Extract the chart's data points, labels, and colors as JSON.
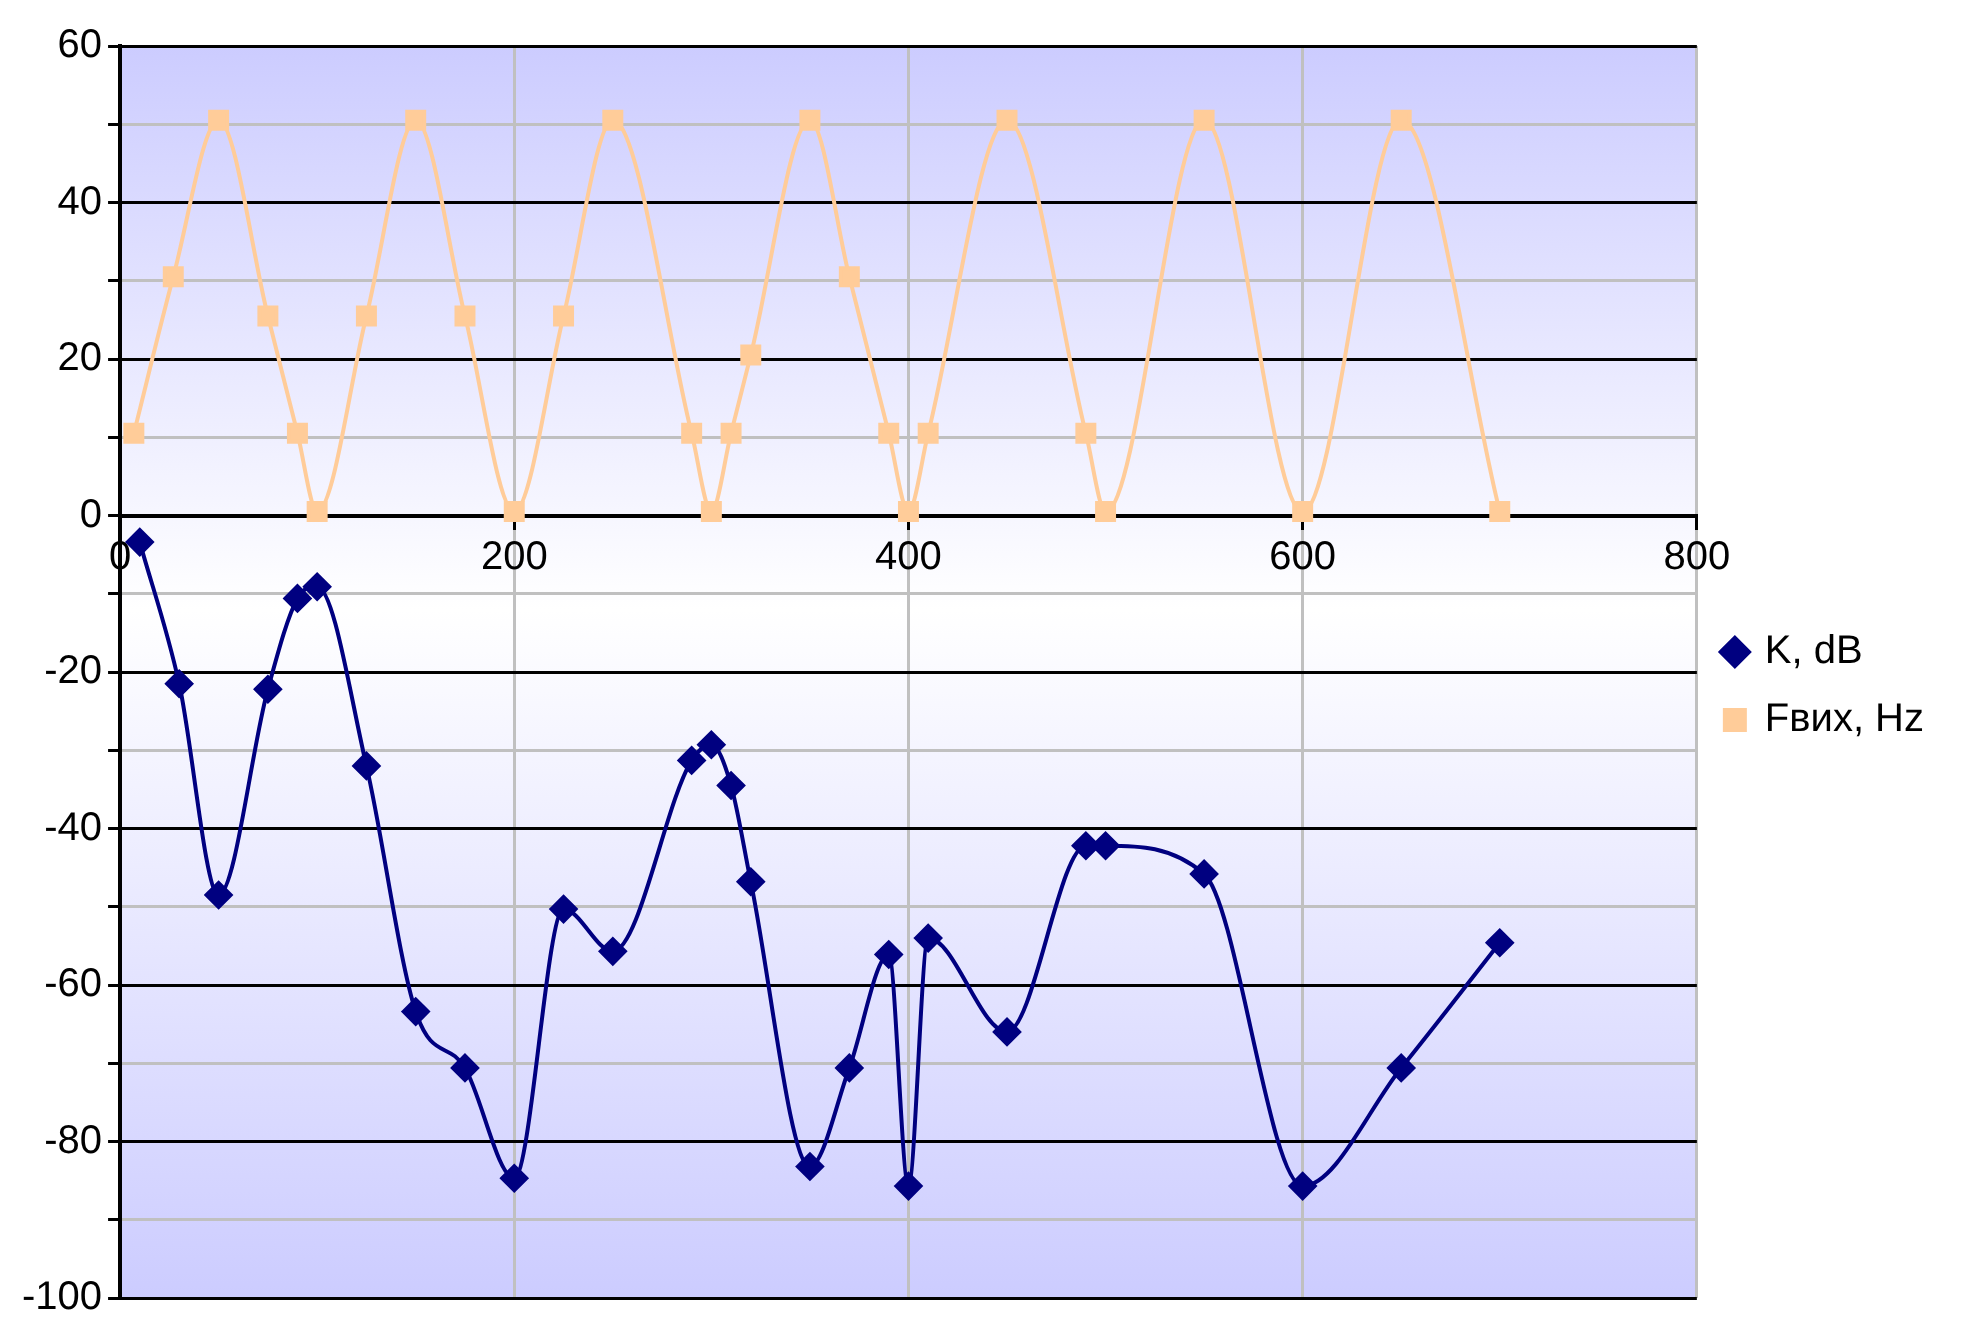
{
  "chart_data": {
    "type": "line",
    "series": [
      {
        "name": "K, dB",
        "color": "#000080",
        "marker": "diamond",
        "x": [
          10,
          30,
          50,
          75,
          90,
          100,
          125,
          150,
          175,
          200,
          225,
          250,
          290,
          300,
          310,
          320,
          350,
          370,
          390,
          400,
          410,
          450,
          490,
          500,
          550,
          600,
          650,
          700
        ],
        "values": [
          -3.4,
          -21.5,
          -48.5,
          -22.2,
          -10.6,
          -9.1,
          -32,
          -63.4,
          -70.6,
          -84.7,
          -50.3,
          -55.7,
          -31.3,
          -29.3,
          -34.5,
          -46.8,
          -83.2,
          -70.6,
          -56.1,
          -85.7,
          -54,
          -66,
          -42.2,
          -42.2,
          -45.8,
          -85.7,
          -70.6,
          -54.6
        ]
      },
      {
        "name": "Fвих, Hz",
        "color": "#ffcc99",
        "marker": "square",
        "x": [
          7,
          27,
          50,
          75,
          90,
          100,
          125,
          150,
          175,
          200,
          225,
          250,
          290,
          300,
          310,
          320,
          350,
          370,
          390,
          400,
          410,
          450,
          490,
          500,
          550,
          600,
          650,
          700
        ],
        "values": [
          10.5,
          30.5,
          50.5,
          25.5,
          10.5,
          0.5,
          25.5,
          50.5,
          25.5,
          0.5,
          25.5,
          50.5,
          10.5,
          0.5,
          10.5,
          20.5,
          50.5,
          30.5,
          10.5,
          0.5,
          10.5,
          50.5,
          10.5,
          0.5,
          50.5,
          0.5,
          50.5,
          0.5
        ]
      }
    ],
    "xlim": [
      0,
      800
    ],
    "xticks": [
      0,
      200,
      400,
      600,
      800
    ],
    "ylim": [
      -100,
      60
    ],
    "yticks": [
      -100,
      {
        "value": -90,
        "label": null
      },
      -80,
      {
        "value": -70,
        "label": null
      },
      -60,
      {
        "value": -50,
        "label": null
      },
      -40,
      {
        "value": -30,
        "label": null
      },
      -20,
      {
        "value": -10,
        "label": null
      },
      0,
      {
        "value": 10,
        "label": null
      },
      20,
      {
        "value": 30,
        "label": null
      },
      40,
      {
        "value": 50,
        "label": null
      },
      60
    ],
    "grid": true,
    "legend": "right",
    "line_style": "solid"
  }
}
